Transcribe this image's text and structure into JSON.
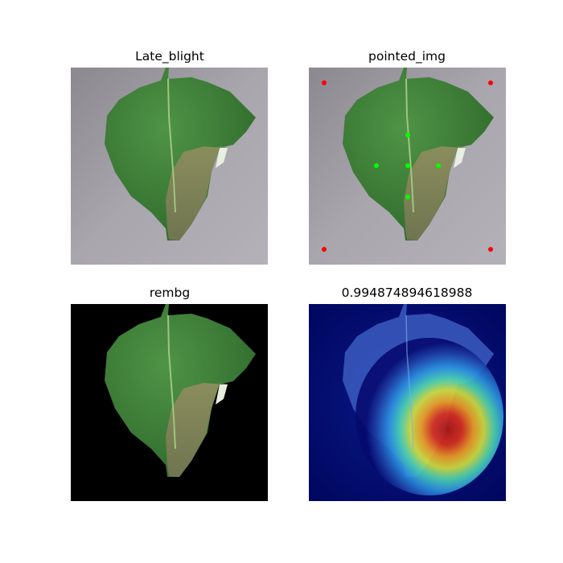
{
  "panels": [
    {
      "title": "Late_blight",
      "image": "leaf-photo-gray-background"
    },
    {
      "title": "pointed_img",
      "image": "leaf-photo-with-keypoints",
      "marker_colors": {
        "corner": "#ff0000",
        "center": "#00ff00"
      }
    },
    {
      "title": "rembg",
      "image": "leaf-photo-background-removed"
    },
    {
      "title": "0.994874894618988",
      "image": "leaf-gradcam-heatmap-overlay"
    }
  ]
}
